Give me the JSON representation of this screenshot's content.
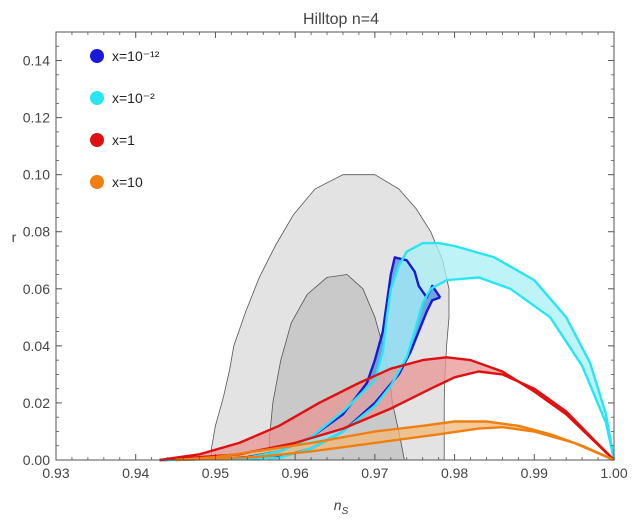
{
  "chart_data": {
    "type": "area",
    "title": "Hilltop n=4",
    "xlabel": "n",
    "xlabel_sub": "S",
    "ylabel": "r",
    "xlim": [
      0.93,
      1.0
    ],
    "ylim": [
      0.0,
      0.15
    ],
    "xticks": [
      "0.93",
      "0.94",
      "0.95",
      "0.96",
      "0.97",
      "0.98",
      "0.99",
      "1.00"
    ],
    "yticks": [
      "0.00",
      "0.02",
      "0.04",
      "0.06",
      "0.08",
      "0.10",
      "0.12",
      "0.14"
    ],
    "legend_position": "top-left",
    "contours": [
      {
        "level": "outer",
        "color": "#d9d9d9",
        "points": [
          [
            0.9495,
            0.0
          ],
          [
            0.9495,
            0.004
          ],
          [
            0.95,
            0.012
          ],
          [
            0.951,
            0.022
          ],
          [
            0.9518,
            0.032
          ],
          [
            0.9523,
            0.04
          ],
          [
            0.9538,
            0.052
          ],
          [
            0.9555,
            0.064
          ],
          [
            0.9575,
            0.075
          ],
          [
            0.9598,
            0.086
          ],
          [
            0.9625,
            0.095
          ],
          [
            0.966,
            0.1
          ],
          [
            0.97,
            0.1
          ],
          [
            0.973,
            0.095
          ],
          [
            0.9752,
            0.088
          ],
          [
            0.977,
            0.08
          ],
          [
            0.9785,
            0.07
          ],
          [
            0.9793,
            0.06
          ],
          [
            0.9793,
            0.05
          ],
          [
            0.979,
            0.04
          ],
          [
            0.9788,
            0.03
          ],
          [
            0.9787,
            0.02
          ],
          [
            0.9787,
            0.01
          ],
          [
            0.9787,
            0.0
          ]
        ]
      },
      {
        "level": "inner",
        "color": "#bdbdbd",
        "points": [
          [
            0.9567,
            0.0
          ],
          [
            0.9568,
            0.008
          ],
          [
            0.9572,
            0.02
          ],
          [
            0.9582,
            0.035
          ],
          [
            0.9595,
            0.048
          ],
          [
            0.9615,
            0.058
          ],
          [
            0.964,
            0.064
          ],
          [
            0.9665,
            0.065
          ],
          [
            0.9685,
            0.06
          ],
          [
            0.97,
            0.05
          ],
          [
            0.971,
            0.04
          ],
          [
            0.9718,
            0.03
          ],
          [
            0.9722,
            0.02
          ],
          [
            0.973,
            0.01
          ],
          [
            0.9737,
            0.0
          ]
        ]
      }
    ],
    "series": [
      {
        "name": "x=10⁻¹²",
        "color": "#1a1ad6",
        "fill": "#4a90e2",
        "upper": [
          [
            0.943,
            0.0
          ],
          [
            0.95,
            0.0005
          ],
          [
            0.954,
            0.001
          ],
          [
            0.958,
            0.003
          ],
          [
            0.962,
            0.008
          ],
          [
            0.966,
            0.016
          ],
          [
            0.969,
            0.027
          ],
          [
            0.97,
            0.035
          ],
          [
            0.971,
            0.045
          ],
          [
            0.9715,
            0.055
          ],
          [
            0.972,
            0.065
          ],
          [
            0.9725,
            0.071
          ],
          [
            0.974,
            0.07
          ],
          [
            0.975,
            0.066
          ],
          [
            0.9755,
            0.061
          ],
          [
            0.9765,
            0.057
          ],
          [
            0.9772,
            0.061
          ],
          [
            0.9782,
            0.057
          ]
        ],
        "lower": [
          [
            0.943,
            0.0
          ],
          [
            0.954,
            0.0005
          ],
          [
            0.958,
            0.001
          ],
          [
            0.962,
            0.004
          ],
          [
            0.966,
            0.01
          ],
          [
            0.97,
            0.02
          ],
          [
            0.973,
            0.03
          ],
          [
            0.9745,
            0.038
          ],
          [
            0.9755,
            0.045
          ],
          [
            0.9765,
            0.052
          ],
          [
            0.9772,
            0.056
          ],
          [
            0.9782,
            0.057
          ]
        ]
      },
      {
        "name": "x=10⁻²",
        "color": "#27e6f2",
        "fill": "#a8f0f5",
        "upper": [
          [
            0.943,
            0.0
          ],
          [
            0.954,
            0.0008
          ],
          [
            0.958,
            0.003
          ],
          [
            0.962,
            0.008
          ],
          [
            0.966,
            0.017
          ],
          [
            0.97,
            0.028
          ],
          [
            0.971,
            0.038
          ],
          [
            0.9715,
            0.05
          ],
          [
            0.972,
            0.06
          ],
          [
            0.973,
            0.068
          ],
          [
            0.974,
            0.073
          ],
          [
            0.976,
            0.076
          ],
          [
            0.978,
            0.076
          ],
          [
            0.98,
            0.075
          ],
          [
            0.985,
            0.071
          ],
          [
            0.99,
            0.063
          ],
          [
            0.994,
            0.05
          ],
          [
            0.997,
            0.034
          ],
          [
            0.999,
            0.016
          ],
          [
            1.0,
            0.0
          ]
        ],
        "lower": [
          [
            0.943,
            0.0
          ],
          [
            0.958,
            0.0008
          ],
          [
            0.962,
            0.004
          ],
          [
            0.966,
            0.01
          ],
          [
            0.97,
            0.019
          ],
          [
            0.972,
            0.026
          ],
          [
            0.974,
            0.036
          ],
          [
            0.975,
            0.045
          ],
          [
            0.976,
            0.055
          ],
          [
            0.977,
            0.06
          ],
          [
            0.979,
            0.063
          ],
          [
            0.983,
            0.064
          ],
          [
            0.987,
            0.06
          ],
          [
            0.992,
            0.05
          ],
          [
            0.996,
            0.033
          ],
          [
            0.999,
            0.013
          ],
          [
            1.0,
            0.0
          ]
        ]
      },
      {
        "name": "x=1",
        "color": "#e01010",
        "fill": "#e89494",
        "upper": [
          [
            0.943,
            0.0
          ],
          [
            0.948,
            0.002
          ],
          [
            0.953,
            0.006
          ],
          [
            0.958,
            0.012
          ],
          [
            0.963,
            0.02
          ],
          [
            0.968,
            0.027
          ],
          [
            0.972,
            0.032
          ],
          [
            0.976,
            0.035
          ],
          [
            0.979,
            0.036
          ],
          [
            0.982,
            0.035
          ],
          [
            0.986,
            0.031
          ],
          [
            0.99,
            0.024
          ],
          [
            0.994,
            0.016
          ],
          [
            0.997,
            0.008
          ],
          [
            1.0,
            0.0
          ]
        ],
        "lower": [
          [
            0.943,
            0.0
          ],
          [
            0.953,
            0.002
          ],
          [
            0.96,
            0.006
          ],
          [
            0.966,
            0.011
          ],
          [
            0.972,
            0.018
          ],
          [
            0.977,
            0.025
          ],
          [
            0.98,
            0.029
          ],
          [
            0.983,
            0.031
          ],
          [
            0.986,
            0.03
          ],
          [
            0.99,
            0.025
          ],
          [
            0.994,
            0.017
          ],
          [
            0.9975,
            0.007
          ],
          [
            1.0,
            0.0
          ]
        ]
      },
      {
        "name": "x=10",
        "color": "#f07f10",
        "fill": "#f2b87a",
        "upper": [
          [
            0.945,
            0.0
          ],
          [
            0.95,
            0.001
          ],
          [
            0.955,
            0.003
          ],
          [
            0.962,
            0.006
          ],
          [
            0.97,
            0.01
          ],
          [
            0.976,
            0.012
          ],
          [
            0.98,
            0.0135
          ],
          [
            0.984,
            0.0135
          ],
          [
            0.988,
            0.012
          ],
          [
            0.992,
            0.009
          ],
          [
            0.996,
            0.005
          ],
          [
            1.0,
            0.0
          ]
        ],
        "lower": [
          [
            0.945,
            0.0
          ],
          [
            0.955,
            0.001
          ],
          [
            0.962,
            0.003
          ],
          [
            0.97,
            0.006
          ],
          [
            0.978,
            0.009
          ],
          [
            0.983,
            0.011
          ],
          [
            0.986,
            0.0115
          ],
          [
            0.99,
            0.01
          ],
          [
            0.995,
            0.006
          ],
          [
            1.0,
            0.0
          ]
        ]
      }
    ],
    "colors": {
      "axis": "#555555",
      "text": "#444444"
    }
  }
}
